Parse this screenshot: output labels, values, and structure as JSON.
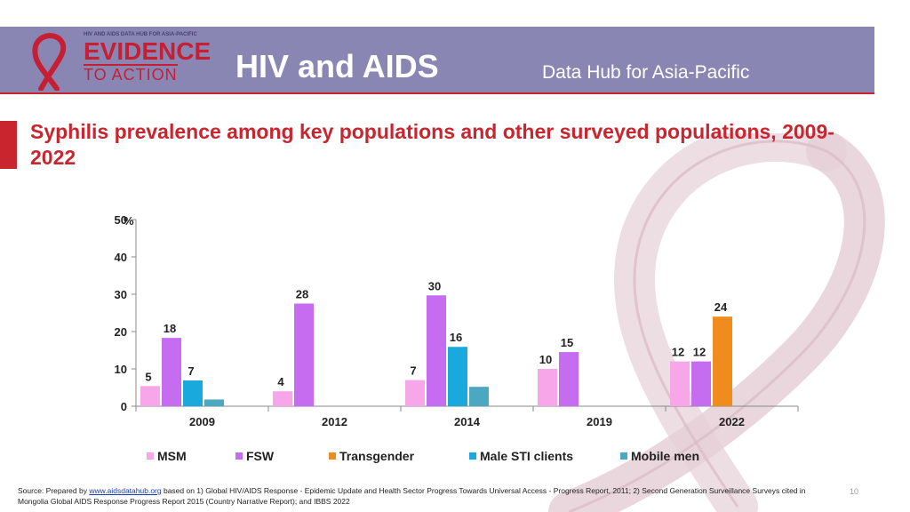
{
  "header": {
    "logo_top_text": "HIV AND AIDS DATA HUB FOR ASIA-PACIFIC",
    "logo_line1": "EVIDENCE",
    "logo_line2": "TO ACTION",
    "title": "HIV and AIDS",
    "subtitle": "Data Hub for Asia-Pacific"
  },
  "slide_title": "Syphilis prevalence among key populations and other surveyed populations, 2009-2022",
  "chart_data": {
    "type": "bar",
    "title": "Syphilis prevalence among key populations and other surveyed populations, 2009-2022",
    "ylabel": "%",
    "xlabel": "",
    "ylim": [
      0,
      50
    ],
    "yticks": [
      0,
      10,
      20,
      30,
      40,
      50
    ],
    "categories": [
      "2009",
      "2012",
      "2014",
      "2019",
      "2022"
    ],
    "series": [
      {
        "name": "MSM",
        "color": "#f6a6e9",
        "values": [
          5.4,
          4.0,
          7.0,
          10.0,
          12.0
        ],
        "labels": [
          "5",
          "4",
          "7",
          "10",
          "12"
        ]
      },
      {
        "name": "FSW",
        "color": "#c56cf0",
        "values": [
          18.3,
          27.5,
          29.7,
          14.5,
          12.0
        ],
        "labels": [
          "18",
          "28",
          "30",
          "15",
          "12"
        ]
      },
      {
        "name": "Transgender",
        "color": "#f08c1e",
        "values": [
          null,
          null,
          null,
          null,
          24.0
        ],
        "labels": [
          "",
          "",
          "",
          "",
          "24"
        ]
      },
      {
        "name": "Male STI clients",
        "color": "#1aa9dc",
        "values": [
          6.9,
          null,
          15.9,
          null,
          null
        ],
        "labels": [
          "7",
          "",
          "16",
          "",
          ""
        ]
      },
      {
        "name": "Mobile men",
        "color": "#4aa8c0",
        "values": [
          1.8,
          null,
          5.2,
          null,
          null
        ],
        "labels": [
          "",
          "",
          "",
          "",
          ""
        ]
      }
    ]
  },
  "source": {
    "prefix": "Source: Prepared by ",
    "link": "www.aidsdatahub.org",
    "text": " based on 1) Global HIV/AIDS Response - Epidemic Update and Health Sector Progress Towards Universal Access - Progress Report, 2011; 2) Second Generation Surveillance Surveys cited in Mongolia Global AIDS Response Progress Report 2015 (Country Narrative Report); and IBBS 2022"
  },
  "page_number": "10",
  "colors": {
    "header_bg": "#8a86b4",
    "accent_red": "#c9252e"
  }
}
